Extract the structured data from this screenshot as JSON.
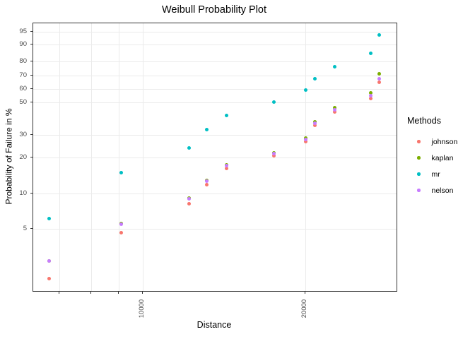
{
  "title": "Weibull Probability Plot",
  "x_axis": {
    "label": "Distance",
    "tick_values": [
      7000,
      8000,
      9000,
      10000,
      20000
    ],
    "tick_labels": [
      "",
      "",
      "",
      "10000",
      "20000"
    ]
  },
  "y_axis": {
    "label": "Probability of Failure in %",
    "tick_values": [
      95,
      90,
      80,
      70,
      60,
      50,
      30,
      20,
      10,
      5
    ]
  },
  "legend": {
    "title": "Methods",
    "items": [
      {
        "label": "johnson",
        "color": "#F8766D"
      },
      {
        "label": "kaplan",
        "color": "#7CAE00"
      },
      {
        "label": "mr",
        "color": "#00BFC4"
      },
      {
        "label": "nelson",
        "color": "#C77CFF"
      }
    ]
  },
  "colors": {
    "panel_border": "#333333",
    "gridline": "#ebebeb",
    "tick_label": "#4d4d4d",
    "text": "#000000"
  },
  "chart_data": {
    "type": "scatter",
    "title": "Weibull Probability Plot",
    "xlabel": "Distance",
    "ylabel": "Probability of Failure in %",
    "x_scale": "log10",
    "y_scale": "weibull-probability (log10(-ln(1-p)))",
    "grid": true,
    "legend_position": "right",
    "x": [
      6700,
      9120,
      12200,
      13150,
      14300,
      17520,
      20100,
      20900,
      22700,
      26510,
      27490
    ],
    "series": [
      {
        "name": "johnson",
        "color": "#F8766D",
        "values": [
          1.8,
          4.6,
          8.2,
          11.9,
          16.2,
          20.4,
          26.6,
          34.8,
          43.1,
          52.7,
          64.7
        ]
      },
      {
        "name": "kaplan",
        "color": "#7CAE00",
        "values": [
          2.6,
          5.5,
          9.1,
          12.9,
          17.3,
          21.6,
          28.2,
          37.1,
          46.1,
          56.9,
          71.3
        ]
      },
      {
        "name": "mr",
        "color": "#00BFC4",
        "values": [
          6.1,
          14.9,
          23.7,
          32.5,
          41.2,
          50.0,
          58.8,
          67.5,
          76.3,
          85.1,
          93.9
        ]
      },
      {
        "name": "nelson",
        "color": "#C77CFF",
        "values": [
          2.6,
          5.4,
          9.0,
          12.7,
          17.0,
          21.2,
          27.5,
          36.0,
          44.6,
          54.6,
          67.5
        ]
      }
    ],
    "x_tick_values": [
      7000,
      8000,
      9000,
      10000,
      20000
    ],
    "x_tick_labels": [
      "",
      "",
      "",
      "10000",
      "20000"
    ],
    "y_tick_values": [
      95,
      90,
      80,
      70,
      60,
      50,
      30,
      20,
      10,
      5
    ],
    "x_log_range": [
      3.7954,
      4.4699
    ],
    "q_range": [
      -1.8451,
      0.5547
    ]
  }
}
